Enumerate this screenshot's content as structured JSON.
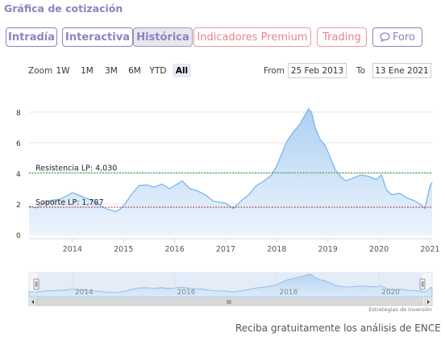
{
  "section_title": "Gráfica de cotización",
  "tabs": [
    {
      "label": "Intradía",
      "style": "outline",
      "active": false
    },
    {
      "label": "Interactiva",
      "style": "outline",
      "active": false
    },
    {
      "label": "Histórica",
      "style": "outline",
      "active": true
    },
    {
      "label": "Indicadores Premium",
      "style": "red",
      "active": false
    },
    {
      "label": "Trading",
      "style": "red",
      "active": false
    },
    {
      "label": "Foro",
      "style": "violet",
      "icon": "chat-bubble-icon",
      "active": false
    }
  ],
  "zoom": {
    "label": "Zoom",
    "buttons": [
      "1W",
      "1M",
      "3M",
      "6M",
      "YTD",
      "All"
    ],
    "selected": "All"
  },
  "range": {
    "from_label": "From",
    "from_value": "25 Feb 2013",
    "to_label": "To",
    "to_value": "13 Ene 2021"
  },
  "chart_data": {
    "type": "area",
    "x_ticks": [
      "2014",
      "2015",
      "2016",
      "2017",
      "2018",
      "2019",
      "2020",
      "2021"
    ],
    "y_ticks": [
      0,
      2,
      4,
      6,
      8
    ],
    "ylim": [
      0,
      9
    ],
    "xlim": [
      2013.15,
      2021.04
    ],
    "series": [
      {
        "x": [
          2013.15,
          2013.3,
          2013.45,
          2013.6,
          2013.75,
          2013.9,
          2014.0,
          2014.1,
          2014.25,
          2014.4,
          2014.55,
          2014.65,
          2014.75,
          2014.85,
          2014.95,
          2015.05,
          2015.15,
          2015.3,
          2015.45,
          2015.6,
          2015.75,
          2015.9,
          2016.0,
          2016.15,
          2016.3,
          2016.45,
          2016.6,
          2016.75,
          2016.9,
          2017.0,
          2017.15,
          2017.3,
          2017.45,
          2017.6,
          2017.75,
          2017.9,
          2018.0,
          2018.1,
          2018.2,
          2018.3,
          2018.45,
          2018.55,
          2018.62,
          2018.68,
          2018.75,
          2018.85,
          2018.95,
          2019.05,
          2019.15,
          2019.25,
          2019.35,
          2019.5,
          2019.65,
          2019.8,
          2019.95,
          2020.05,
          2020.15,
          2020.25,
          2020.4,
          2020.55,
          2020.7,
          2020.8,
          2020.9,
          2021.0,
          2021.04
        ],
        "values": [
          1.85,
          1.75,
          2.1,
          2.25,
          2.3,
          2.55,
          2.75,
          2.6,
          2.4,
          2.2,
          1.9,
          1.7,
          1.6,
          1.5,
          1.7,
          2.1,
          2.6,
          3.2,
          3.25,
          3.1,
          3.3,
          3.0,
          3.2,
          3.5,
          3.0,
          2.85,
          2.6,
          2.2,
          2.1,
          2.05,
          1.7,
          2.2,
          2.6,
          3.2,
          3.5,
          3.9,
          4.5,
          5.3,
          6.1,
          6.6,
          7.2,
          7.8,
          8.2,
          8.0,
          7.0,
          6.2,
          5.8,
          5.0,
          4.2,
          3.8,
          3.5,
          3.7,
          3.9,
          3.8,
          3.6,
          3.9,
          2.9,
          2.6,
          2.7,
          2.4,
          2.2,
          2.0,
          1.7,
          3.2,
          3.4
        ]
      }
    ],
    "annotations": [
      {
        "label": "Resistencia LP: 4,030",
        "value": 4.03,
        "color": "#2e8b2e"
      },
      {
        "label": "Soporte LP: 1,787",
        "value": 1.787,
        "color": "#a83333"
      }
    ],
    "navigator_ticks": [
      "2014",
      "2016",
      "2018",
      "2020"
    ],
    "grid": true
  },
  "credit": "Estrategias de Inversión",
  "footer_text": "Reciba gratuitamente los análisis de ENCE",
  "colors": {
    "accent": "#8a84c0",
    "line": "#7cb5ec",
    "fill_top": "#a9cdf2",
    "fill_bottom": "#eaf3fc"
  }
}
